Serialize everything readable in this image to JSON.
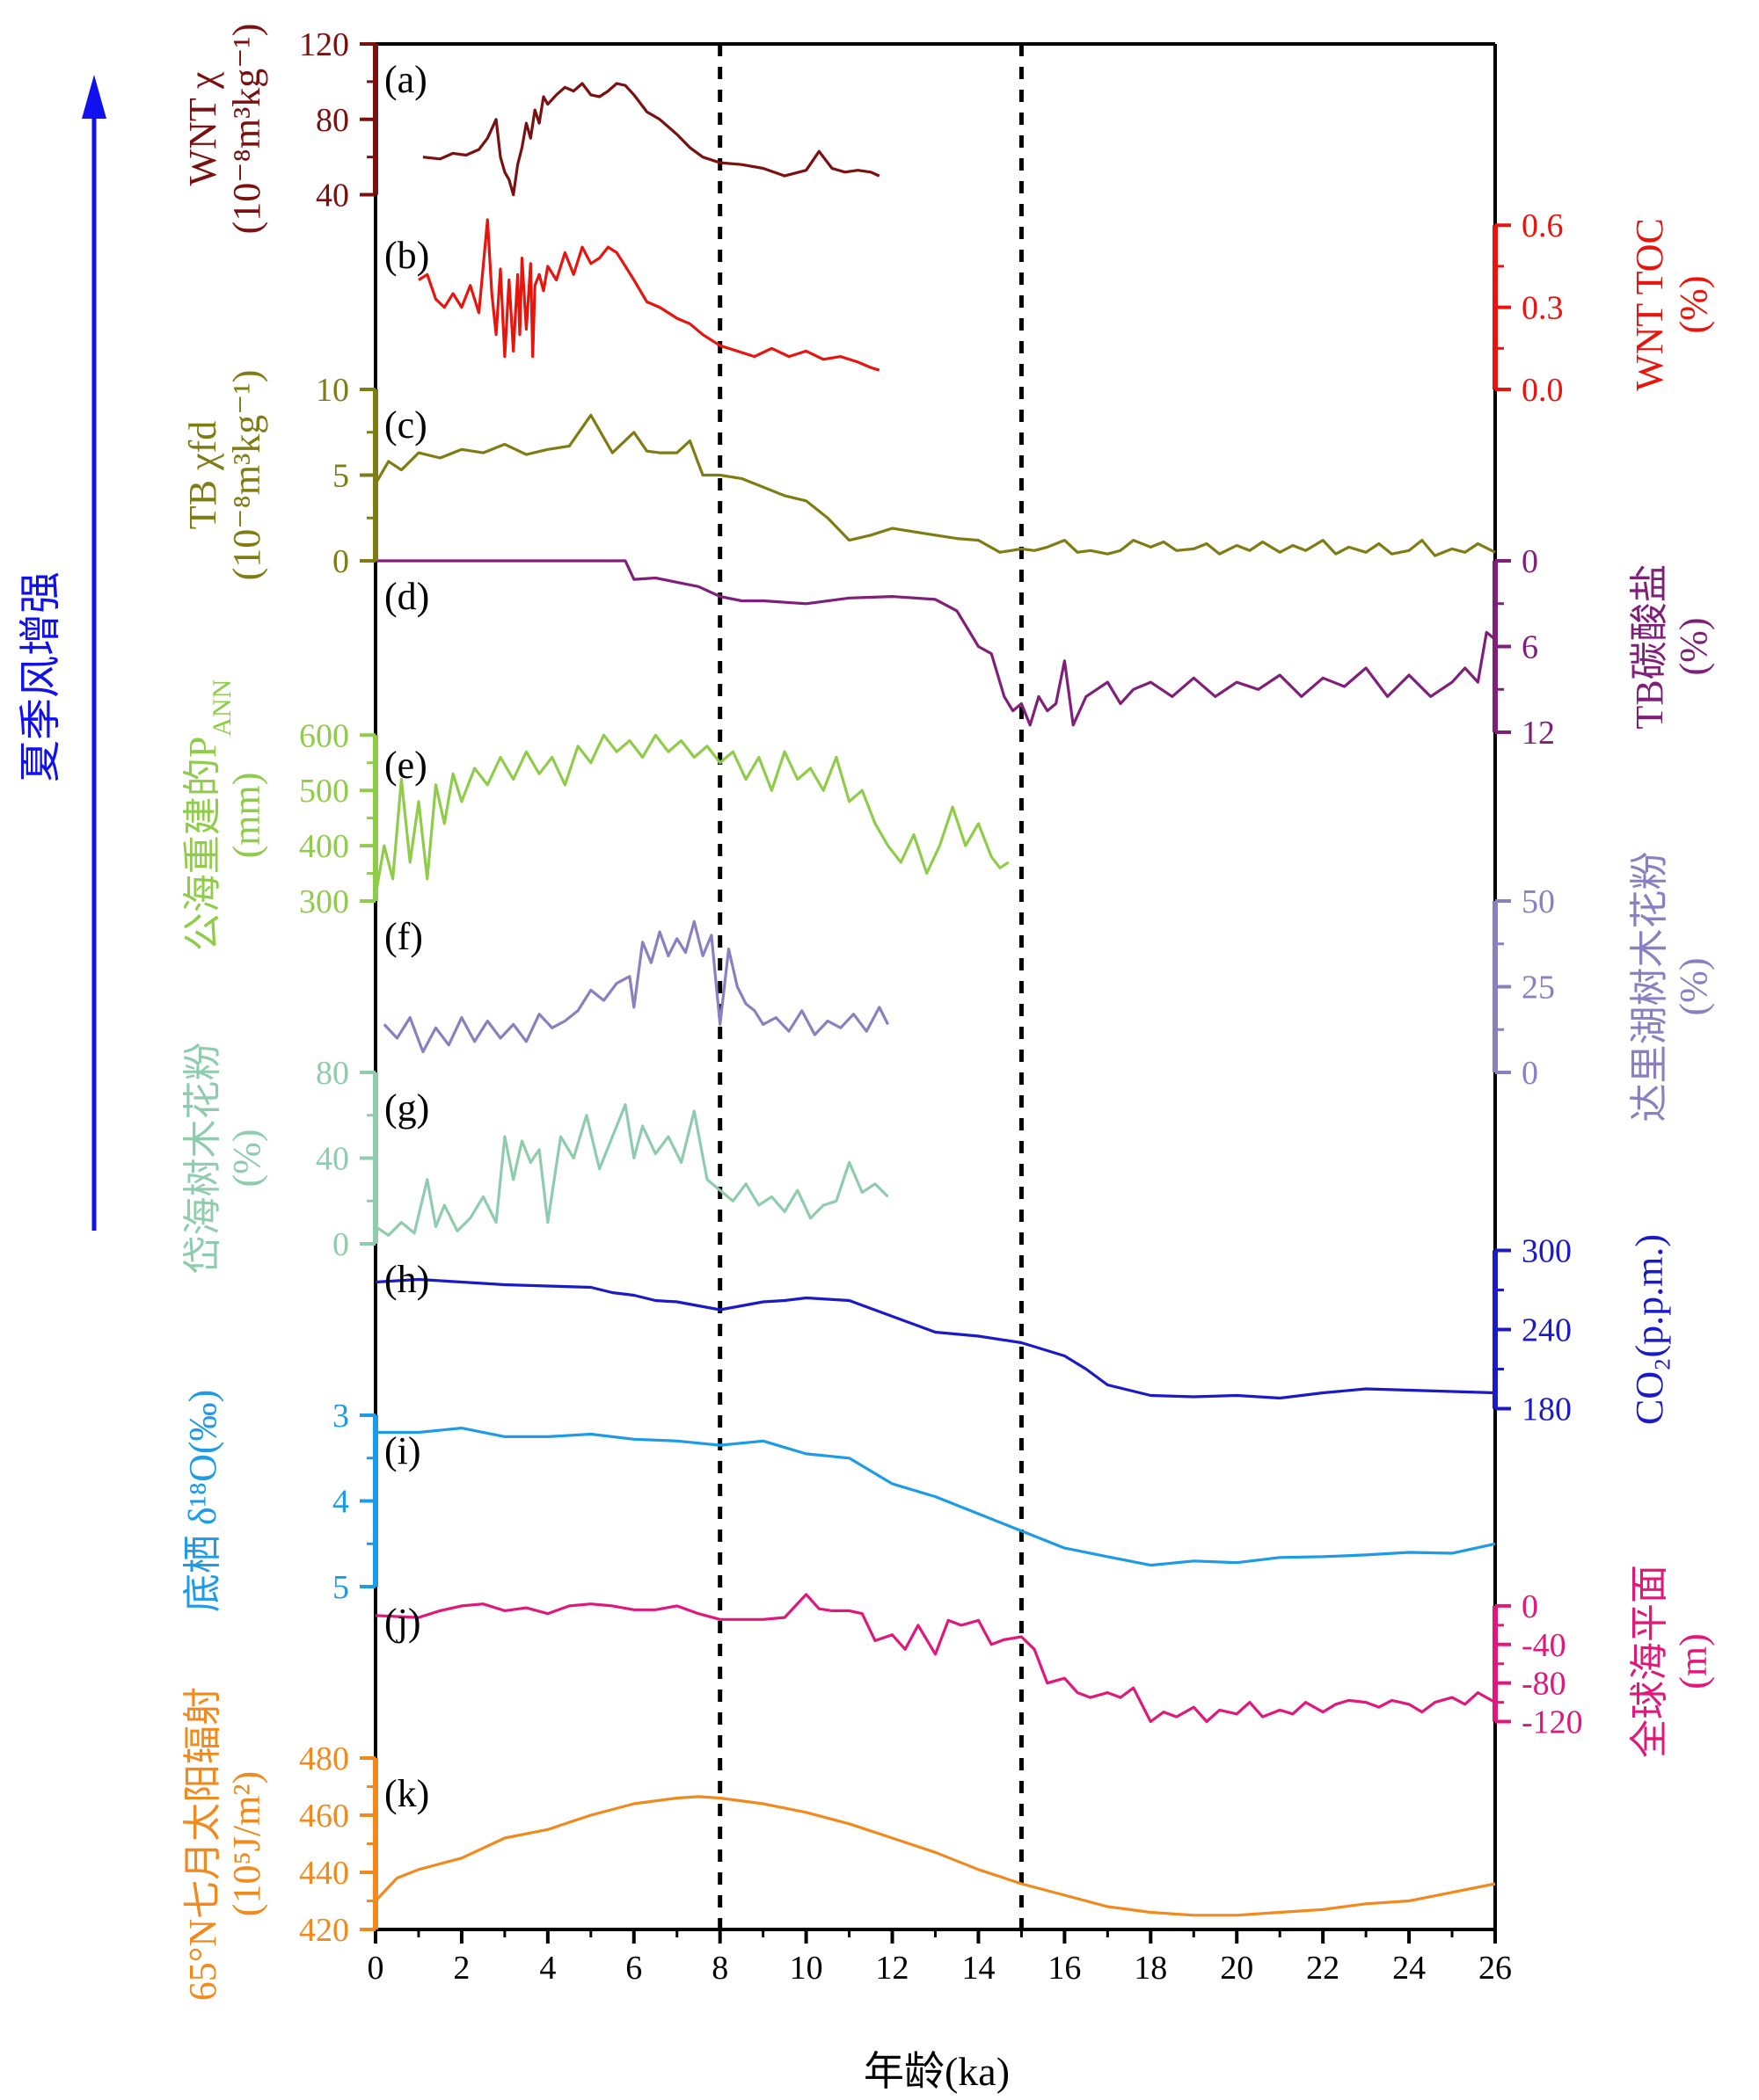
{
  "side_label": "夏季风增强",
  "chart_data": {
    "type": "line",
    "xlabel": "年龄(ka)",
    "xlim": [
      0,
      26
    ],
    "x_ticks": [
      0,
      2,
      4,
      6,
      8,
      10,
      12,
      14,
      16,
      18,
      20,
      22,
      24,
      26
    ],
    "reference_lines_ka": [
      8,
      15
    ],
    "panels": [
      {
        "id": "a",
        "label": "(a)",
        "side": "left",
        "color": "#7a1010",
        "title": "WNT χ",
        "unit": "(10⁻⁸m³kg⁻¹)",
        "ylim": [
          30,
          120
        ],
        "ticks": [
          40,
          80,
          120
        ],
        "x": [
          1.1,
          1.5,
          1.8,
          2.1,
          2.4,
          2.6,
          2.8,
          2.9,
          3.0,
          3.1,
          3.2,
          3.3,
          3.4,
          3.5,
          3.6,
          3.7,
          3.8,
          3.9,
          4.0,
          4.2,
          4.4,
          4.6,
          4.8,
          5.0,
          5.2,
          5.4,
          5.6,
          5.8,
          6.0,
          6.3,
          6.6,
          7.0,
          7.3,
          7.6,
          8.0,
          8.5,
          9.0,
          9.5,
          10.0,
          10.3,
          10.6,
          10.9,
          11.2,
          11.5,
          11.7
        ],
        "y": [
          60,
          59,
          62,
          61,
          64,
          70,
          80,
          60,
          52,
          48,
          40,
          56,
          65,
          78,
          70,
          85,
          78,
          92,
          88,
          93,
          97,
          95,
          99,
          93,
          92,
          95,
          99,
          98,
          93,
          84,
          80,
          72,
          65,
          60,
          57,
          56,
          54,
          50,
          53,
          63,
          54,
          52,
          53,
          52,
          50
        ]
      },
      {
        "id": "b",
        "label": "(b)",
        "side": "right",
        "color": "#e8140e",
        "title": "WNT TOC",
        "unit": "(%)",
        "ylim": [
          0,
          0.62
        ],
        "ticks": [
          0.0,
          0.3,
          0.6
        ],
        "tick_labels": [
          "0.0",
          "0.3",
          "0.6"
        ],
        "x": [
          1.0,
          1.2,
          1.4,
          1.6,
          1.8,
          2.0,
          2.2,
          2.4,
          2.6,
          2.7,
          2.8,
          2.9,
          3.0,
          3.1,
          3.2,
          3.3,
          3.35,
          3.4,
          3.5,
          3.6,
          3.65,
          3.7,
          3.8,
          3.9,
          4.0,
          4.2,
          4.4,
          4.6,
          4.8,
          5.0,
          5.2,
          5.4,
          5.6,
          5.8,
          6.0,
          6.3,
          6.6,
          7.0,
          7.3,
          7.6,
          8.0,
          8.4,
          8.8,
          9.2,
          9.6,
          10.0,
          10.4,
          10.8,
          11.2,
          11.5,
          11.7
        ],
        "y": [
          0.4,
          0.42,
          0.33,
          0.3,
          0.35,
          0.3,
          0.38,
          0.28,
          0.62,
          0.35,
          0.2,
          0.44,
          0.12,
          0.4,
          0.14,
          0.42,
          0.2,
          0.48,
          0.22,
          0.46,
          0.12,
          0.38,
          0.42,
          0.36,
          0.45,
          0.4,
          0.5,
          0.42,
          0.52,
          0.46,
          0.48,
          0.52,
          0.5,
          0.45,
          0.4,
          0.32,
          0.3,
          0.26,
          0.24,
          0.2,
          0.16,
          0.14,
          0.12,
          0.15,
          0.12,
          0.14,
          0.11,
          0.12,
          0.1,
          0.08,
          0.07
        ]
      },
      {
        "id": "c",
        "label": "(c)",
        "side": "left",
        "color": "#7f7c13",
        "title": "TB χfd",
        "unit": "(10⁻⁸m³kg⁻¹)",
        "ylim": [
          0,
          10
        ],
        "ticks": [
          0,
          5,
          10
        ],
        "x": [
          0,
          0.3,
          0.6,
          1.0,
          1.5,
          2.0,
          2.5,
          3.0,
          3.5,
          4.0,
          4.5,
          5.0,
          5.5,
          6.0,
          6.3,
          6.6,
          7.0,
          7.3,
          7.6,
          8.0,
          8.5,
          9.0,
          9.5,
          10.0,
          10.5,
          11.0,
          11.5,
          12.0,
          12.5,
          13.0,
          13.5,
          14.0,
          14.5,
          15.0,
          15.3,
          15.6,
          16.0,
          16.3,
          16.6,
          17.0,
          17.3,
          17.6,
          18.0,
          18.3,
          18.6,
          19.0,
          19.3,
          19.6,
          20.0,
          20.3,
          20.6,
          21.0,
          21.3,
          21.6,
          22.0,
          22.3,
          22.6,
          23.0,
          23.3,
          23.6,
          24.0,
          24.3,
          24.6,
          25.0,
          25.3,
          25.6,
          26.0
        ],
        "y": [
          4.5,
          5.8,
          5.3,
          6.3,
          6.0,
          6.5,
          6.3,
          6.8,
          6.2,
          6.5,
          6.7,
          8.5,
          6.3,
          7.5,
          6.4,
          6.3,
          6.3,
          7.0,
          5.0,
          5.0,
          4.8,
          4.3,
          3.8,
          3.5,
          2.5,
          1.2,
          1.5,
          1.9,
          1.7,
          1.5,
          1.3,
          1.2,
          0.5,
          0.7,
          0.6,
          0.8,
          1.2,
          0.5,
          0.6,
          0.4,
          0.6,
          1.2,
          0.8,
          1.1,
          0.6,
          0.7,
          1.0,
          0.4,
          0.9,
          0.6,
          1.1,
          0.5,
          0.9,
          0.6,
          1.2,
          0.4,
          0.8,
          0.5,
          1.0,
          0.4,
          0.6,
          1.2,
          0.3,
          0.7,
          0.5,
          1.0,
          0.5
        ]
      },
      {
        "id": "d",
        "label": "(d)",
        "side": "right",
        "color": "#7f1f7a",
        "title": "TB碳酸盐",
        "unit": "(%)",
        "ylim": [
          0,
          12
        ],
        "inverted": true,
        "ticks": [
          0,
          6,
          12
        ],
        "x": [
          0,
          2,
          4,
          5.5,
          5.8,
          6.0,
          6.5,
          7.0,
          7.5,
          8.0,
          8.5,
          9.0,
          10.0,
          11.0,
          12.0,
          13.0,
          13.5,
          14.0,
          14.3,
          14.6,
          14.8,
          15.0,
          15.2,
          15.4,
          15.6,
          15.8,
          16.0,
          16.2,
          16.5,
          17.0,
          17.3,
          17.6,
          18.0,
          18.5,
          19.0,
          19.5,
          20.0,
          20.5,
          21.0,
          21.5,
          22.0,
          22.5,
          23.0,
          23.5,
          24.0,
          24.5,
          25.0,
          25.3,
          25.6,
          25.8,
          26.0
        ],
        "y": [
          0,
          0,
          0,
          0,
          0,
          1.3,
          1.2,
          1.5,
          1.8,
          2.5,
          2.8,
          2.8,
          3.0,
          2.6,
          2.5,
          2.7,
          3.5,
          6.0,
          6.5,
          9.5,
          10.5,
          10.0,
          11.5,
          9.5,
          10.5,
          10.0,
          7.0,
          11.5,
          9.5,
          8.5,
          10.0,
          9.0,
          8.5,
          9.5,
          8.2,
          9.5,
          8.5,
          9.0,
          8.0,
          9.5,
          8.2,
          8.8,
          7.5,
          9.5,
          8.0,
          9.5,
          8.5,
          7.5,
          8.5,
          5.0,
          5.5
        ]
      },
      {
        "id": "e",
        "label": "(e)",
        "side": "left",
        "color": "#8fcc4a",
        "title": "公海重建的P",
        "title_sub": "ANN",
        "unit": "(mm)",
        "ylim": [
          300,
          610
        ],
        "ticks": [
          300,
          400,
          500,
          600
        ],
        "x": [
          0,
          0.2,
          0.4,
          0.6,
          0.8,
          1.0,
          1.2,
          1.4,
          1.6,
          1.8,
          2.0,
          2.3,
          2.6,
          2.9,
          3.2,
          3.5,
          3.8,
          4.1,
          4.4,
          4.7,
          5.0,
          5.3,
          5.6,
          5.9,
          6.2,
          6.5,
          6.8,
          7.1,
          7.4,
          7.7,
          8.0,
          8.3,
          8.6,
          8.9,
          9.2,
          9.5,
          9.8,
          10.1,
          10.4,
          10.7,
          11.0,
          11.3,
          11.6,
          11.9,
          12.2,
          12.5,
          12.8,
          13.1,
          13.4,
          13.7,
          14.0,
          14.3,
          14.5,
          14.7
        ],
        "y": [
          310,
          400,
          340,
          520,
          370,
          480,
          340,
          510,
          440,
          530,
          480,
          540,
          510,
          560,
          520,
          570,
          530,
          560,
          510,
          580,
          550,
          600,
          570,
          590,
          560,
          600,
          570,
          590,
          560,
          580,
          550,
          570,
          520,
          560,
          500,
          570,
          520,
          540,
          500,
          560,
          480,
          500,
          440,
          400,
          370,
          420,
          350,
          400,
          470,
          400,
          440,
          380,
          360,
          370
        ]
      },
      {
        "id": "f",
        "label": "(f)",
        "side": "right",
        "color": "#8a80c0",
        "title": "达里湖树木花粉",
        "unit": "(%)",
        "ylim": [
          0,
          50
        ],
        "ticks": [
          0,
          25,
          50
        ],
        "x": [
          0.2,
          0.5,
          0.8,
          1.1,
          1.4,
          1.7,
          2.0,
          2.3,
          2.6,
          2.9,
          3.2,
          3.5,
          3.8,
          4.1,
          4.4,
          4.7,
          5.0,
          5.3,
          5.6,
          5.9,
          6.0,
          6.2,
          6.4,
          6.6,
          6.8,
          7.0,
          7.2,
          7.4,
          7.6,
          7.8,
          8.0,
          8.2,
          8.4,
          8.6,
          8.8,
          9.0,
          9.3,
          9.6,
          9.9,
          10.2,
          10.5,
          10.8,
          11.1,
          11.4,
          11.7,
          11.9
        ],
        "y": [
          14,
          10,
          16,
          6,
          13,
          8,
          16,
          9,
          15,
          10,
          14,
          9,
          17,
          13,
          15,
          18,
          24,
          21,
          26,
          28,
          19,
          38,
          32,
          41,
          34,
          39,
          35,
          44,
          34,
          40,
          14,
          36,
          25,
          20,
          18,
          14,
          16,
          12,
          18,
          11,
          15,
          13,
          17,
          12,
          19,
          14
        ]
      },
      {
        "id": "g",
        "label": "(g)",
        "side": "left",
        "color": "#8fccae",
        "title": "岱海树木花粉",
        "unit": "(%)",
        "ylim": [
          0,
          80
        ],
        "ticks": [
          0,
          40,
          80
        ],
        "x": [
          0,
          0.3,
          0.6,
          0.9,
          1.2,
          1.4,
          1.6,
          1.9,
          2.2,
          2.5,
          2.8,
          3.0,
          3.2,
          3.4,
          3.6,
          3.8,
          4.0,
          4.3,
          4.6,
          4.9,
          5.2,
          5.5,
          5.8,
          6.0,
          6.2,
          6.5,
          6.8,
          7.1,
          7.4,
          7.7,
          8.0,
          8.3,
          8.6,
          8.9,
          9.2,
          9.5,
          9.8,
          10.1,
          10.4,
          10.7,
          11.0,
          11.3,
          11.6,
          11.9
        ],
        "y": [
          8,
          4,
          10,
          5,
          30,
          8,
          18,
          6,
          12,
          22,
          10,
          50,
          30,
          48,
          38,
          44,
          10,
          50,
          40,
          60,
          35,
          50,
          65,
          40,
          55,
          42,
          50,
          38,
          62,
          30,
          25,
          20,
          28,
          18,
          22,
          15,
          25,
          12,
          18,
          20,
          38,
          24,
          28,
          22
        ]
      },
      {
        "id": "h",
        "label": "(h)",
        "side": "right",
        "color": "#1a1ac8",
        "title": "CO₂(p.p.m.)",
        "unit": "",
        "ylim": [
          175,
          305
        ],
        "ticks": [
          180,
          240,
          300
        ],
        "x": [
          0,
          1,
          2,
          3,
          4,
          5,
          5.5,
          6,
          6.5,
          7,
          7.5,
          8,
          8.5,
          9,
          9.5,
          10,
          10.5,
          11,
          12,
          13,
          14,
          15,
          15.5,
          16,
          16.5,
          17,
          18,
          19,
          20,
          21,
          22,
          23,
          24,
          25,
          26
        ],
        "y": [
          276,
          278,
          276,
          274,
          273,
          272,
          268,
          266,
          262,
          261,
          258,
          255,
          258,
          261,
          262,
          264,
          263,
          262,
          250,
          238,
          235,
          230,
          225,
          220,
          210,
          198,
          190,
          189,
          190,
          188,
          192,
          195,
          194,
          193,
          192
        ]
      },
      {
        "id": "i",
        "label": "(i)",
        "side": "left",
        "color": "#1e9be6",
        "title": "底栖 δ¹⁸O(‰)",
        "unit": "",
        "ylim": [
          3,
          5
        ],
        "inverted": true,
        "ticks": [
          3,
          4,
          5
        ],
        "x": [
          0,
          1,
          2,
          3,
          4,
          5,
          6,
          7,
          8,
          9,
          10,
          11,
          12,
          13,
          14,
          15,
          16,
          17,
          18,
          19,
          20,
          21,
          22,
          23,
          24,
          25,
          26
        ],
        "y": [
          3.2,
          3.2,
          3.15,
          3.25,
          3.25,
          3.22,
          3.28,
          3.3,
          3.35,
          3.3,
          3.45,
          3.5,
          3.8,
          3.95,
          4.15,
          4.35,
          4.55,
          4.65,
          4.75,
          4.7,
          4.72,
          4.66,
          4.65,
          4.63,
          4.6,
          4.61,
          4.5
        ]
      },
      {
        "id": "j",
        "label": "(j)",
        "side": "right",
        "color": "#e0187c",
        "title": "全球海平面",
        "unit": "(m)",
        "ylim": [
          -135,
          20
        ],
        "ticks": [
          -120,
          -80,
          -40,
          0
        ],
        "x": [
          0,
          1,
          1.5,
          2,
          2.5,
          3,
          3.5,
          4,
          4.5,
          5,
          5.5,
          6,
          6.5,
          7,
          7.5,
          8,
          8.5,
          9,
          9.5,
          10,
          10.3,
          10.6,
          11,
          11.3,
          11.6,
          12,
          12.3,
          12.6,
          13,
          13.3,
          13.6,
          14,
          14.3,
          14.6,
          15,
          15.3,
          15.6,
          16,
          16.3,
          16.6,
          17,
          17.3,
          17.6,
          18,
          18.3,
          18.6,
          19,
          19.3,
          19.6,
          20,
          20.3,
          20.6,
          21,
          21.3,
          21.6,
          22,
          22.3,
          22.6,
          23,
          23.3,
          23.6,
          24,
          24.3,
          24.6,
          25,
          25.3,
          25.6,
          26
        ],
        "y": [
          -10,
          -12,
          -5,
          0,
          2,
          -5,
          -2,
          -8,
          0,
          2,
          0,
          -4,
          -4,
          0,
          -8,
          -14,
          -14,
          -14,
          -12,
          12,
          -3,
          -5,
          -5,
          -8,
          -36,
          -30,
          -45,
          -20,
          -50,
          -15,
          -20,
          -15,
          -40,
          -35,
          -32,
          -45,
          -80,
          -75,
          -90,
          -95,
          -90,
          -95,
          -85,
          -120,
          -110,
          -115,
          -105,
          -120,
          -108,
          -112,
          -100,
          -115,
          -108,
          -112,
          -100,
          -110,
          -102,
          -98,
          -100,
          -105,
          -98,
          -102,
          -110,
          -100,
          -95,
          -102,
          -90,
          -100
        ]
      },
      {
        "id": "k",
        "label": "(k)",
        "side": "left",
        "color": "#f08a1e",
        "title": "65°N七月太阳辐射",
        "unit": "(10⁵J/m²)",
        "ylim": [
          420,
          480
        ],
        "ticks": [
          420,
          440,
          460,
          480
        ],
        "x": [
          0,
          0.5,
          1,
          2,
          3,
          4,
          5,
          6,
          7,
          7.5,
          8,
          9,
          10,
          11,
          12,
          13,
          14,
          15,
          16,
          17,
          18,
          19,
          20,
          21,
          22,
          23,
          24,
          25,
          26
        ],
        "y": [
          430,
          438,
          441,
          445,
          452,
          455,
          460,
          464,
          466,
          466.5,
          466,
          464,
          461,
          457,
          452,
          447,
          441,
          436,
          432,
          428,
          426,
          425,
          425,
          426,
          427,
          429,
          430,
          433,
          436
        ]
      }
    ]
  }
}
